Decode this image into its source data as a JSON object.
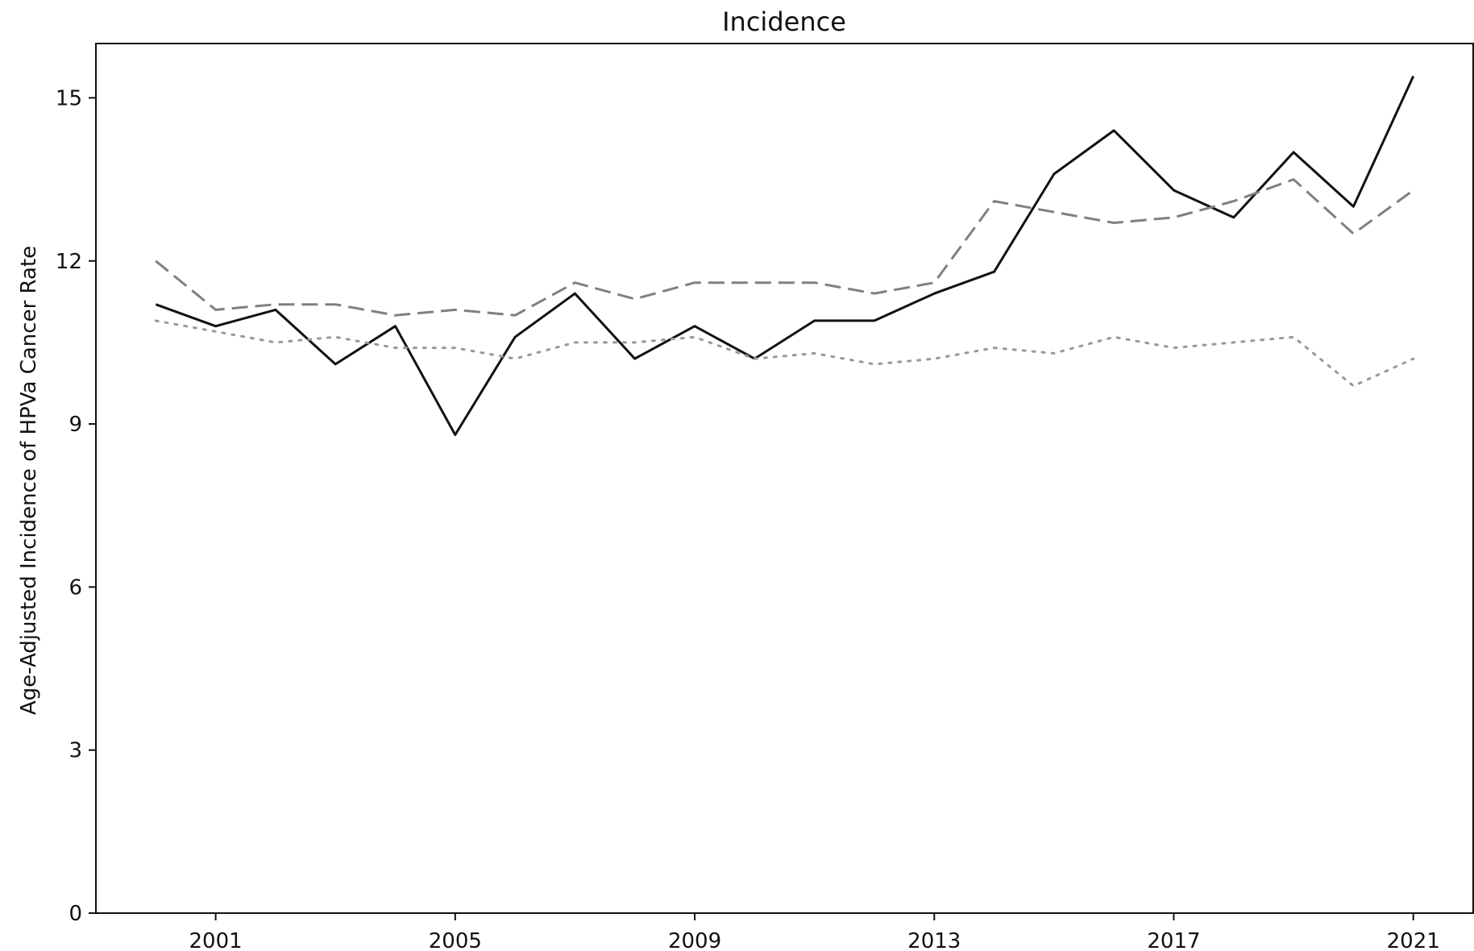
{
  "chart_data": {
    "type": "line",
    "title": "Incidence",
    "xlabel": "",
    "ylabel": "Age-Adjusted Incidence of HPVa Cancer Rate",
    "xlim": [
      1999,
      2022
    ],
    "ylim": [
      0,
      16
    ],
    "x_ticks": [
      2001,
      2005,
      2009,
      2013,
      2017,
      2021
    ],
    "y_ticks": [
      0,
      3,
      6,
      9,
      12,
      15
    ],
    "grid": false,
    "x": [
      2000,
      2001,
      2002,
      2003,
      2004,
      2005,
      2006,
      2007,
      2008,
      2009,
      2010,
      2011,
      2012,
      2013,
      2014,
      2015,
      2016,
      2017,
      2018,
      2019,
      2020,
      2021
    ],
    "series": [
      {
        "style": "solid",
        "color": "#111111",
        "values": [
          11.2,
          10.8,
          11.1,
          10.1,
          10.8,
          8.8,
          10.6,
          11.4,
          10.2,
          10.8,
          10.2,
          10.9,
          10.9,
          11.4,
          11.8,
          13.6,
          14.4,
          13.3,
          12.8,
          14.0,
          13.0,
          15.4
        ]
      },
      {
        "style": "dashed",
        "color": "#808080",
        "values": [
          12.0,
          11.1,
          11.2,
          11.2,
          11.0,
          11.1,
          11.0,
          11.6,
          11.3,
          11.6,
          11.6,
          11.6,
          11.4,
          11.6,
          13.1,
          12.9,
          12.7,
          12.8,
          13.1,
          13.5,
          12.5,
          13.3
        ]
      },
      {
        "style": "dotted",
        "color": "#999999",
        "values": [
          10.9,
          10.7,
          10.5,
          10.6,
          10.4,
          10.4,
          10.2,
          10.5,
          10.5,
          10.6,
          10.2,
          10.3,
          10.1,
          10.2,
          10.4,
          10.3,
          10.6,
          10.4,
          10.5,
          10.6,
          9.7,
          10.2
        ]
      }
    ]
  }
}
